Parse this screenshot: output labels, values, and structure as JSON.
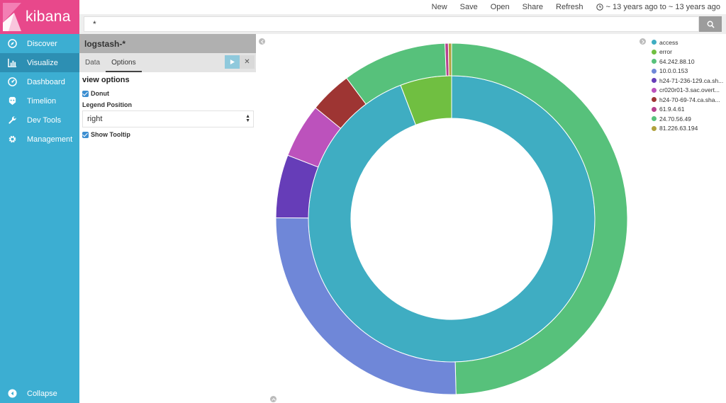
{
  "app": {
    "name": "kibana"
  },
  "sidebar": {
    "items": [
      {
        "label": "Discover",
        "icon": "compass-icon",
        "active": false
      },
      {
        "label": "Visualize",
        "icon": "bar-chart-icon",
        "active": true
      },
      {
        "label": "Dashboard",
        "icon": "dashboard-icon",
        "active": false
      },
      {
        "label": "Timelion",
        "icon": "timelion-icon",
        "active": false
      },
      {
        "label": "Dev Tools",
        "icon": "wrench-icon",
        "active": false
      },
      {
        "label": "Management",
        "icon": "gear-icon",
        "active": false
      }
    ],
    "collapse_label": "Collapse"
  },
  "topbar": {
    "new_label": "New",
    "save_label": "Save",
    "open_label": "Open",
    "share_label": "Share",
    "refresh_label": "Refresh",
    "time_range": "~ 13 years ago to ~ 13 years ago"
  },
  "search": {
    "query": "*"
  },
  "editor": {
    "index_pattern": "logstash-*",
    "tabs": [
      {
        "label": "Data",
        "active": false
      },
      {
        "label": "Options",
        "active": true
      }
    ],
    "view_options_heading": "view options",
    "donut_label": "Donut",
    "donut_checked": true,
    "legend_position_label": "Legend Position",
    "legend_position_value": "right",
    "show_tooltip_label": "Show Tooltip",
    "show_tooltip_checked": true
  },
  "legend": {
    "items": [
      {
        "label": "access",
        "color": "#3fadc2"
      },
      {
        "label": "error",
        "color": "#70bf41"
      },
      {
        "label": "64.242.88.10",
        "color": "#57c17b"
      },
      {
        "label": "10.0.0.153",
        "color": "#6f87d8"
      },
      {
        "label": "h24-71-236-129.ca.sh...",
        "color": "#663db8"
      },
      {
        "label": "cr020r01-3.sac.overt...",
        "color": "#bc52bc"
      },
      {
        "label": "h24-70-69-74.ca.sha...",
        "color": "#9e3533"
      },
      {
        "label": "61.9.4.61",
        "color": "#b6408e"
      },
      {
        "label": "24.70.56.49",
        "color": "#57c17b"
      },
      {
        "label": "81.226.63.194",
        "color": "#b0a13c"
      }
    ]
  },
  "chart_data": {
    "type": "pie",
    "donut": true,
    "rings": [
      {
        "name": "inner",
        "slices": [
          {
            "label": "access",
            "value": 94.2,
            "color": "#3fadc2"
          },
          {
            "label": "error",
            "value": 5.8,
            "color": "#70bf41"
          }
        ]
      },
      {
        "name": "outer",
        "slices": [
          {
            "label": "64.242.88.10",
            "value": 49.6,
            "color": "#57c17b"
          },
          {
            "label": "10.0.0.153",
            "value": 25.5,
            "color": "#6f87d8"
          },
          {
            "label": "h24-71-236-129.ca.sh...",
            "value": 5.8,
            "color": "#663db8"
          },
          {
            "label": "cr020r01-3.sac.overt...",
            "value": 5.0,
            "color": "#bc52bc"
          },
          {
            "label": "h24-70-69-74.ca.sha...",
            "value": 3.9,
            "color": "#9e3533"
          },
          {
            "label": "24.70.56.49",
            "value": 9.6,
            "color": "#57c17b"
          },
          {
            "label": "61.9.4.61",
            "value": 0.3,
            "color": "#b6408e"
          },
          {
            "label": "81.226.63.194",
            "value": 0.3,
            "color": "#b0a13c"
          }
        ]
      }
    ]
  }
}
